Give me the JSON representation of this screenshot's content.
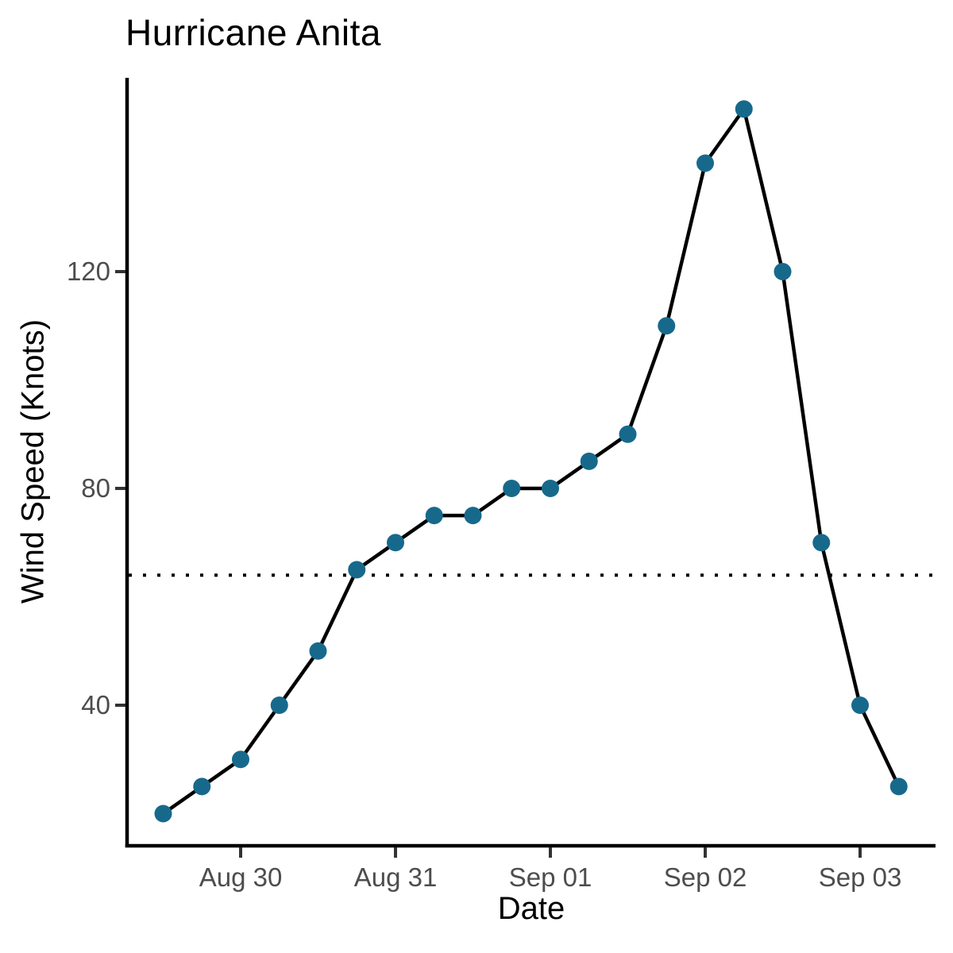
{
  "chart_data": {
    "type": "line",
    "title": "Hurricane Anita",
    "xlabel": "Date",
    "ylabel": "Wind Speed (Knots)",
    "y_ticks": [
      40,
      80,
      120
    ],
    "ylim_approx": [
      14,
      156
    ],
    "grid": "off",
    "legend": "none",
    "x_ticks": [
      {
        "label": "Aug 30",
        "step": 0
      },
      {
        "label": "Aug 31",
        "step": 4
      },
      {
        "label": "Sep 01",
        "step": 8
      },
      {
        "label": "Sep 02",
        "step": 12
      },
      {
        "label": "Sep 03",
        "step": 16
      }
    ],
    "reference_line": {
      "style": "dotted",
      "y_value": 64
    },
    "series": [
      {
        "name": "Wind Speed",
        "points": [
          {
            "time": "Aug 29 12:00",
            "step": -2,
            "knots": 20
          },
          {
            "time": "Aug 29 18:00",
            "step": -1,
            "knots": 25
          },
          {
            "time": "Aug 30 00:00",
            "step": 0,
            "knots": 30
          },
          {
            "time": "Aug 30 06:00",
            "step": 1,
            "knots": 40
          },
          {
            "time": "Aug 30 12:00",
            "step": 2,
            "knots": 50
          },
          {
            "time": "Aug 30 18:00",
            "step": 3,
            "knots": 65
          },
          {
            "time": "Aug 31 00:00",
            "step": 4,
            "knots": 70
          },
          {
            "time": "Aug 31 06:00",
            "step": 5,
            "knots": 75
          },
          {
            "time": "Aug 31 12:00",
            "step": 6,
            "knots": 75
          },
          {
            "time": "Aug 31 18:00",
            "step": 7,
            "knots": 80
          },
          {
            "time": "Sep 01 00:00",
            "step": 8,
            "knots": 80
          },
          {
            "time": "Sep 01 06:00",
            "step": 9,
            "knots": 85
          },
          {
            "time": "Sep 01 12:00",
            "step": 10,
            "knots": 90
          },
          {
            "time": "Sep 01 18:00",
            "step": 11,
            "knots": 110
          },
          {
            "time": "Sep 02 00:00",
            "step": 12,
            "knots": 140
          },
          {
            "time": "Sep 02 06:00",
            "step": 13,
            "knots": 150
          },
          {
            "time": "Sep 02 12:00",
            "step": 14,
            "knots": 120
          },
          {
            "time": "Sep 02 18:00",
            "step": 15,
            "knots": 70
          },
          {
            "time": "Sep 03 00:00",
            "step": 16,
            "knots": 40
          },
          {
            "time": "Sep 03 06:00",
            "step": 17,
            "knots": 25
          }
        ]
      }
    ],
    "colors": {
      "point": "#17698C",
      "line": "#000000",
      "axis_text": "#4D4D4D",
      "axis_line": "#000000",
      "tick_mark": "#333333",
      "background": "#FFFFFF"
    }
  }
}
